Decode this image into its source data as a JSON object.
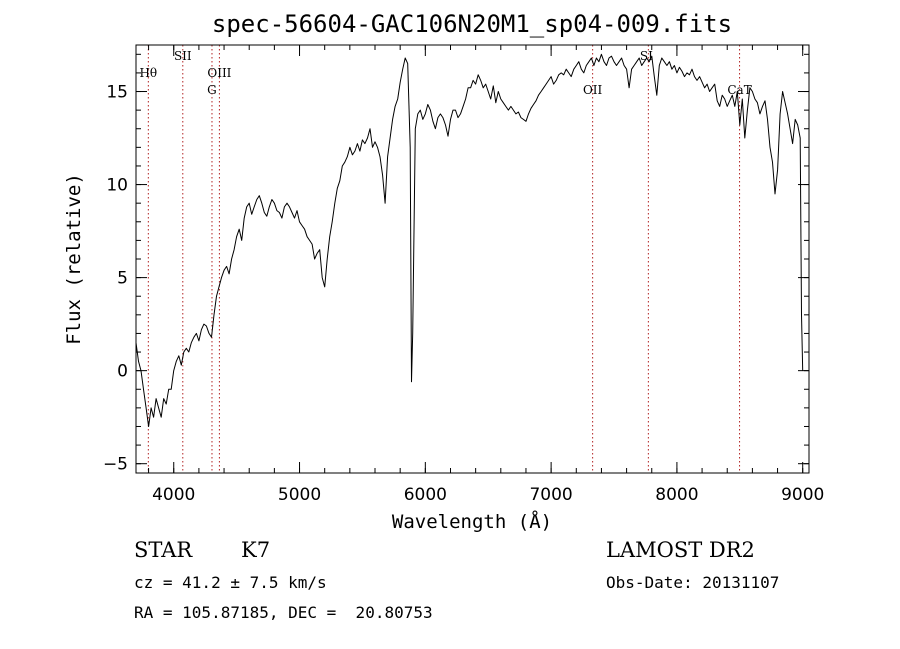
{
  "chart_data": {
    "type": "line",
    "title": "spec-56604-GAC106N20M1_sp04-009.fits",
    "xlabel": "Wavelength (Å)",
    "ylabel": "Flux (relative)",
    "xlim": [
      3700,
      9050
    ],
    "ylim": [
      -5.5,
      17.5
    ],
    "x_ticks": [
      4000,
      5000,
      6000,
      7000,
      8000,
      9000
    ],
    "x_tick_labels": [
      "4000",
      "5000",
      "6000",
      "7000",
      "8000",
      "9000"
    ],
    "y_ticks": [
      -5,
      0,
      5,
      10,
      15
    ],
    "y_tick_labels": [
      "−5",
      "0",
      "5",
      "10",
      "15"
    ],
    "x_minor_step": 200,
    "y_minor_step": 1,
    "grid": false,
    "line_color": "#000000",
    "marker_color": "#b22222",
    "spectral_lines": [
      {
        "label": "Hθ",
        "wavelength": 3798
      },
      {
        "label": "SII",
        "wavelength": 4072
      },
      {
        "label": "G",
        "wavelength": 4304
      },
      {
        "label": "OIII",
        "wavelength": 4363
      },
      {
        "label": "OII",
        "wavelength": 7330
      },
      {
        "label": "SI",
        "wavelength": 7773
      },
      {
        "label": "CaT",
        "wavelength": 8498
      }
    ],
    "series": [
      {
        "points": [
          [
            3700,
            1.5
          ],
          [
            3720,
            0.5
          ],
          [
            3740,
            0.0
          ],
          [
            3760,
            -1.0
          ],
          [
            3780,
            -2.0
          ],
          [
            3800,
            -3.0
          ],
          [
            3820,
            -2.0
          ],
          [
            3840,
            -2.5
          ],
          [
            3860,
            -1.5
          ],
          [
            3880,
            -2.0
          ],
          [
            3900,
            -2.5
          ],
          [
            3920,
            -1.5
          ],
          [
            3940,
            -1.8
          ],
          [
            3960,
            -1.0
          ],
          [
            3980,
            -1.0
          ],
          [
            4000,
            0.0
          ],
          [
            4020,
            0.5
          ],
          [
            4040,
            0.8
          ],
          [
            4060,
            0.3
          ],
          [
            4080,
            1.0
          ],
          [
            4100,
            1.2
          ],
          [
            4120,
            1.0
          ],
          [
            4140,
            1.5
          ],
          [
            4160,
            1.8
          ],
          [
            4180,
            2.0
          ],
          [
            4200,
            1.6
          ],
          [
            4220,
            2.2
          ],
          [
            4240,
            2.5
          ],
          [
            4260,
            2.4
          ],
          [
            4280,
            2.0
          ],
          [
            4300,
            1.8
          ],
          [
            4320,
            3.0
          ],
          [
            4340,
            4.0
          ],
          [
            4360,
            4.5
          ],
          [
            4380,
            5.0
          ],
          [
            4400,
            5.4
          ],
          [
            4420,
            5.6
          ],
          [
            4440,
            5.2
          ],
          [
            4460,
            6.0
          ],
          [
            4480,
            6.5
          ],
          [
            4500,
            7.2
          ],
          [
            4520,
            7.6
          ],
          [
            4540,
            7.0
          ],
          [
            4560,
            8.2
          ],
          [
            4580,
            8.8
          ],
          [
            4600,
            9.0
          ],
          [
            4620,
            8.4
          ],
          [
            4640,
            8.8
          ],
          [
            4660,
            9.2
          ],
          [
            4680,
            9.4
          ],
          [
            4700,
            9.0
          ],
          [
            4720,
            8.5
          ],
          [
            4740,
            8.3
          ],
          [
            4760,
            8.8
          ],
          [
            4780,
            9.2
          ],
          [
            4800,
            9.0
          ],
          [
            4820,
            8.6
          ],
          [
            4840,
            8.5
          ],
          [
            4860,
            8.2
          ],
          [
            4880,
            8.8
          ],
          [
            4900,
            9.0
          ],
          [
            4920,
            8.8
          ],
          [
            4940,
            8.5
          ],
          [
            4960,
            8.2
          ],
          [
            4980,
            8.6
          ],
          [
            5000,
            8.0
          ],
          [
            5020,
            7.8
          ],
          [
            5040,
            7.6
          ],
          [
            5060,
            7.2
          ],
          [
            5080,
            7.0
          ],
          [
            5100,
            6.8
          ],
          [
            5120,
            6.0
          ],
          [
            5140,
            6.3
          ],
          [
            5160,
            6.5
          ],
          [
            5180,
            5.0
          ],
          [
            5200,
            4.5
          ],
          [
            5220,
            6.0
          ],
          [
            5240,
            7.2
          ],
          [
            5260,
            8.0
          ],
          [
            5280,
            9.0
          ],
          [
            5300,
            9.8
          ],
          [
            5320,
            10.2
          ],
          [
            5340,
            11.0
          ],
          [
            5360,
            11.2
          ],
          [
            5380,
            11.5
          ],
          [
            5400,
            12.0
          ],
          [
            5420,
            11.6
          ],
          [
            5440,
            11.8
          ],
          [
            5460,
            12.2
          ],
          [
            5480,
            11.8
          ],
          [
            5500,
            12.4
          ],
          [
            5520,
            12.2
          ],
          [
            5540,
            12.5
          ],
          [
            5560,
            13.0
          ],
          [
            5580,
            12.0
          ],
          [
            5600,
            12.3
          ],
          [
            5620,
            12.0
          ],
          [
            5640,
            11.5
          ],
          [
            5660,
            10.5
          ],
          [
            5680,
            9.0
          ],
          [
            5700,
            11.5
          ],
          [
            5720,
            12.5
          ],
          [
            5740,
            13.5
          ],
          [
            5760,
            14.2
          ],
          [
            5780,
            14.6
          ],
          [
            5800,
            15.5
          ],
          [
            5820,
            16.2
          ],
          [
            5840,
            16.8
          ],
          [
            5860,
            16.5
          ],
          [
            5880,
            12.0
          ],
          [
            5890,
            -0.6
          ],
          [
            5900,
            2.0
          ],
          [
            5920,
            13.0
          ],
          [
            5940,
            13.8
          ],
          [
            5960,
            14.0
          ],
          [
            5980,
            13.5
          ],
          [
            6000,
            13.8
          ],
          [
            6020,
            14.3
          ],
          [
            6040,
            14.0
          ],
          [
            6060,
            13.4
          ],
          [
            6080,
            13.0
          ],
          [
            6100,
            13.6
          ],
          [
            6120,
            13.8
          ],
          [
            6140,
            13.6
          ],
          [
            6160,
            13.2
          ],
          [
            6180,
            12.6
          ],
          [
            6200,
            13.5
          ],
          [
            6220,
            14.0
          ],
          [
            6240,
            14.0
          ],
          [
            6260,
            13.6
          ],
          [
            6280,
            13.8
          ],
          [
            6300,
            14.2
          ],
          [
            6320,
            14.6
          ],
          [
            6340,
            15.2
          ],
          [
            6360,
            15.2
          ],
          [
            6380,
            15.6
          ],
          [
            6400,
            15.4
          ],
          [
            6420,
            15.9
          ],
          [
            6440,
            15.6
          ],
          [
            6460,
            15.2
          ],
          [
            6480,
            15.4
          ],
          [
            6500,
            15.0
          ],
          [
            6520,
            14.6
          ],
          [
            6540,
            15.3
          ],
          [
            6560,
            14.4
          ],
          [
            6580,
            15.0
          ],
          [
            6600,
            14.6
          ],
          [
            6620,
            14.4
          ],
          [
            6640,
            14.2
          ],
          [
            6660,
            14.0
          ],
          [
            6680,
            14.2
          ],
          [
            6700,
            14.0
          ],
          [
            6720,
            13.8
          ],
          [
            6740,
            13.9
          ],
          [
            6760,
            13.6
          ],
          [
            6780,
            13.5
          ],
          [
            6800,
            13.4
          ],
          [
            6820,
            13.8
          ],
          [
            6840,
            14.1
          ],
          [
            6860,
            14.3
          ],
          [
            6880,
            14.5
          ],
          [
            6900,
            14.8
          ],
          [
            6920,
            15.0
          ],
          [
            6940,
            15.2
          ],
          [
            6960,
            15.4
          ],
          [
            6980,
            15.6
          ],
          [
            7000,
            15.8
          ],
          [
            7020,
            15.4
          ],
          [
            7040,
            15.6
          ],
          [
            7060,
            15.9
          ],
          [
            7080,
            16.0
          ],
          [
            7100,
            15.9
          ],
          [
            7120,
            16.2
          ],
          [
            7140,
            16.0
          ],
          [
            7160,
            15.8
          ],
          [
            7180,
            16.2
          ],
          [
            7200,
            16.4
          ],
          [
            7220,
            16.6
          ],
          [
            7240,
            16.2
          ],
          [
            7260,
            16.0
          ],
          [
            7280,
            16.4
          ],
          [
            7300,
            16.6
          ],
          [
            7320,
            16.8
          ],
          [
            7340,
            16.4
          ],
          [
            7360,
            16.8
          ],
          [
            7380,
            16.6
          ],
          [
            7400,
            17.0
          ],
          [
            7420,
            16.6
          ],
          [
            7440,
            16.4
          ],
          [
            7460,
            16.8
          ],
          [
            7480,
            16.9
          ],
          [
            7500,
            16.6
          ],
          [
            7520,
            16.4
          ],
          [
            7540,
            16.6
          ],
          [
            7560,
            16.8
          ],
          [
            7580,
            16.4
          ],
          [
            7600,
            16.2
          ],
          [
            7620,
            15.2
          ],
          [
            7640,
            16.2
          ],
          [
            7660,
            16.4
          ],
          [
            7680,
            16.6
          ],
          [
            7700,
            16.8
          ],
          [
            7720,
            16.4
          ],
          [
            7740,
            16.6
          ],
          [
            7760,
            16.8
          ],
          [
            7780,
            16.6
          ],
          [
            7800,
            16.9
          ],
          [
            7820,
            15.8
          ],
          [
            7840,
            14.8
          ],
          [
            7860,
            16.4
          ],
          [
            7880,
            16.8
          ],
          [
            7900,
            16.6
          ],
          [
            7920,
            16.4
          ],
          [
            7940,
            16.6
          ],
          [
            7960,
            16.2
          ],
          [
            7980,
            16.4
          ],
          [
            8000,
            16.0
          ],
          [
            8020,
            16.3
          ],
          [
            8040,
            16.1
          ],
          [
            8060,
            15.8
          ],
          [
            8080,
            16.0
          ],
          [
            8100,
            15.9
          ],
          [
            8120,
            16.2
          ],
          [
            8140,
            15.8
          ],
          [
            8160,
            15.6
          ],
          [
            8180,
            15.8
          ],
          [
            8200,
            15.5
          ],
          [
            8220,
            15.2
          ],
          [
            8240,
            15.4
          ],
          [
            8260,
            15.0
          ],
          [
            8280,
            15.2
          ],
          [
            8300,
            15.4
          ],
          [
            8320,
            14.5
          ],
          [
            8340,
            14.2
          ],
          [
            8360,
            14.8
          ],
          [
            8380,
            14.6
          ],
          [
            8400,
            14.2
          ],
          [
            8420,
            14.5
          ],
          [
            8440,
            14.8
          ],
          [
            8460,
            14.2
          ],
          [
            8480,
            15.0
          ],
          [
            8500,
            13.2
          ],
          [
            8520,
            14.6
          ],
          [
            8540,
            12.5
          ],
          [
            8560,
            14.0
          ],
          [
            8580,
            15.2
          ],
          [
            8600,
            15.0
          ],
          [
            8620,
            14.6
          ],
          [
            8640,
            14.4
          ],
          [
            8660,
            13.8
          ],
          [
            8680,
            14.2
          ],
          [
            8700,
            14.5
          ],
          [
            8720,
            13.5
          ],
          [
            8740,
            12.0
          ],
          [
            8760,
            11.2
          ],
          [
            8780,
            9.5
          ],
          [
            8800,
            10.8
          ],
          [
            8820,
            13.8
          ],
          [
            8840,
            15.0
          ],
          [
            8860,
            14.4
          ],
          [
            8880,
            13.8
          ],
          [
            8900,
            13.0
          ],
          [
            8920,
            12.2
          ],
          [
            8940,
            13.5
          ],
          [
            8960,
            13.2
          ],
          [
            8980,
            12.5
          ],
          [
            8990,
            3.0
          ],
          [
            9000,
            0.0
          ]
        ]
      }
    ]
  },
  "info": {
    "class_label": "STAR",
    "subclass": "K7",
    "survey": "LAMOST DR2",
    "redshift": "cz = 41.2 ± 7.5 km/s",
    "obs_date": "Obs-Date: 20131107",
    "coords": "RA = 105.87185, DEC =  20.80753"
  }
}
